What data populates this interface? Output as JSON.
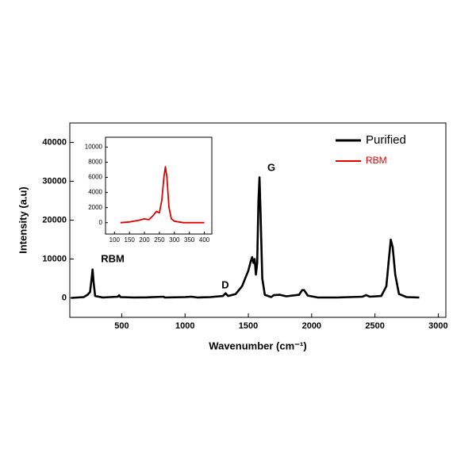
{
  "chart_data": [
    {
      "type": "line",
      "x_label": "Wavenumber (cm⁻¹)",
      "y_label": "Intensity (a.u)",
      "annotations": [
        "RBM",
        "D",
        "G"
      ],
      "x": [
        100,
        200,
        230,
        250,
        262,
        270,
        278,
        290,
        350,
        470,
        480,
        490,
        600,
        700,
        830,
        840,
        1000,
        1050,
        1100,
        1200,
        1300,
        1320,
        1340,
        1400,
        1450,
        1500,
        1520,
        1530,
        1540,
        1550,
        1560,
        1570,
        1580,
        1588,
        1596,
        1610,
        1630,
        1680,
        1700,
        1750,
        1800,
        1900,
        1925,
        1940,
        1970,
        2050,
        2200,
        2400,
        2430,
        2460,
        2550,
        2590,
        2610,
        2625,
        2640,
        2660,
        2690,
        2750,
        2850
      ],
      "series": [
        {
          "name": "Purified",
          "color": "#000000",
          "values": [
            0,
            200,
            800,
            1500,
            5000,
            7300,
            4000,
            500,
            100,
            300,
            700,
            200,
            100,
            150,
            300,
            100,
            200,
            300,
            100,
            200,
            500,
            1200,
            500,
            1000,
            3000,
            7000,
            9500,
            10500,
            9000,
            10000,
            6000,
            9000,
            25000,
            31000,
            22000,
            5000,
            800,
            200,
            700,
            800,
            400,
            800,
            2000,
            2000,
            600,
            100,
            100,
            300,
            700,
            300,
            500,
            3000,
            10000,
            15000,
            13000,
            6000,
            1000,
            200,
            100
          ]
        }
      ],
      "xlim": [
        90,
        3060
      ],
      "ylim": [
        -5000,
        45000
      ],
      "xticks": [
        500,
        1000,
        1500,
        2000,
        2500,
        3000
      ],
      "yticks": [
        0,
        10000,
        20000,
        30000,
        40000
      ]
    },
    {
      "type": "line",
      "x": [
        120,
        150,
        180,
        200,
        215,
        230,
        240,
        250,
        258,
        265,
        270,
        275,
        282,
        290,
        300,
        330,
        400
      ],
      "series": [
        {
          "name": "RBM",
          "color": "#e00000",
          "values": [
            0,
            100,
            300,
            500,
            400,
            1000,
            1500,
            1300,
            3000,
            6000,
            7400,
            6000,
            2000,
            500,
            200,
            0,
            0
          ]
        }
      ],
      "xlim": [
        70,
        425
      ],
      "ylim": [
        -1500,
        11300
      ],
      "xticks": [
        100,
        150,
        200,
        250,
        300,
        350,
        400
      ],
      "yticks": [
        0,
        2000,
        4000,
        6000,
        8000,
        10000
      ]
    }
  ]
}
